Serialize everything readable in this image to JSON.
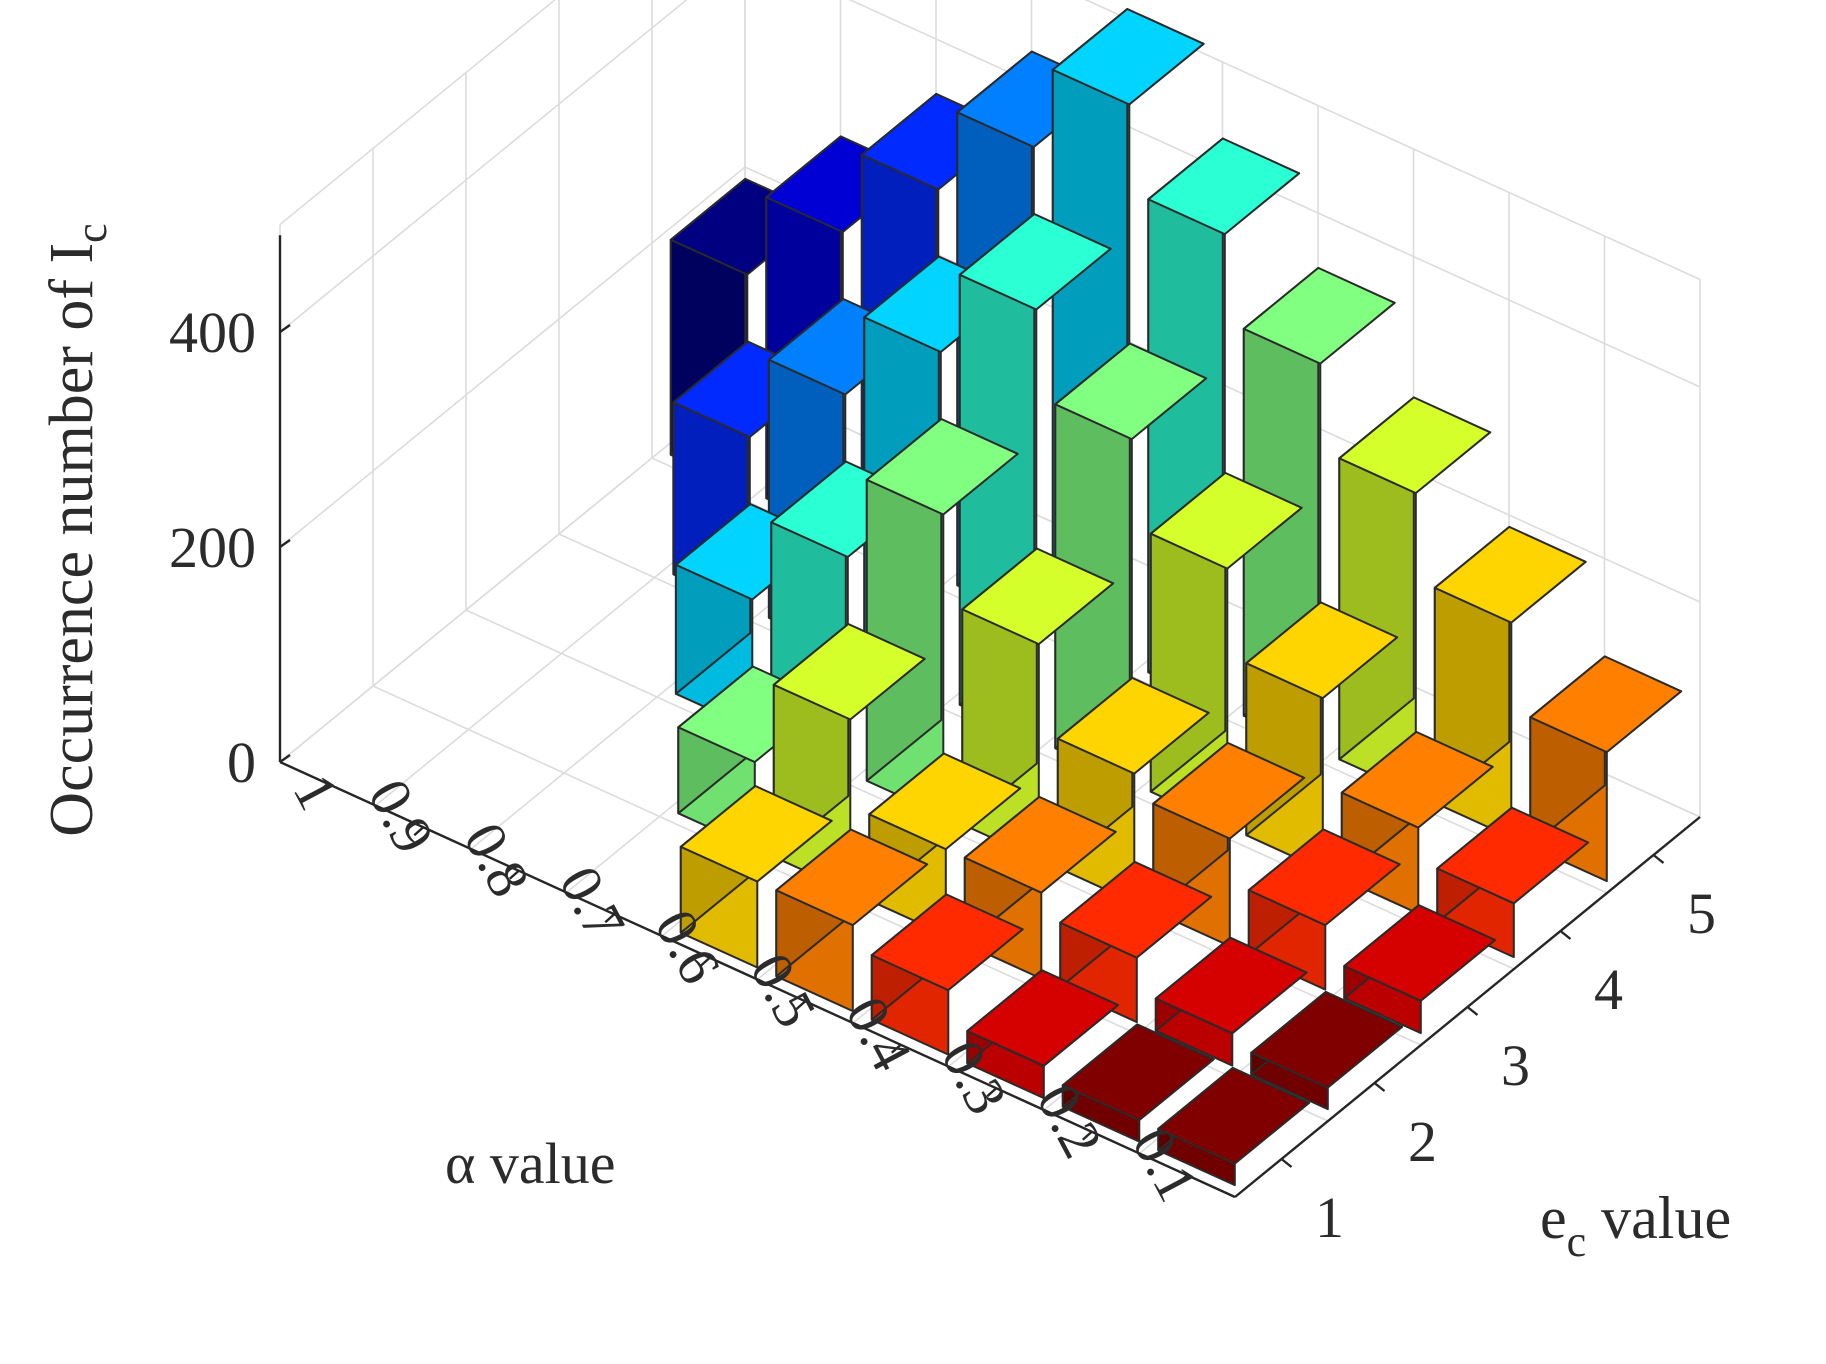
{
  "chart_data": {
    "type": "bar3d",
    "zlabel": {
      "main": "Occurrence number of I",
      "sub": "c"
    },
    "alpha_axis": {
      "label": "α value",
      "ticks": [
        "1",
        "0.9",
        "0.8",
        "0.7",
        "0.6",
        "0.5",
        "0.4",
        "0.3",
        "0.2",
        "0.1"
      ]
    },
    "ec_axis": {
      "label_main": "e",
      "label_sub": "c",
      "label_rest": " value",
      "ticks": [
        "1",
        "2",
        "3",
        "4",
        "5"
      ]
    },
    "z_ticks": [
      "0",
      "200",
      "400"
    ],
    "zlim": [
      0,
      500
    ],
    "grid": true,
    "colormap": "jet",
    "bars": [
      {
        "alpha": "1",
        "ec": 5,
        "value": 200
      },
      {
        "alpha": "0.9",
        "ec": 5,
        "value": 280
      },
      {
        "alpha": "0.8",
        "ec": 5,
        "value": 360
      },
      {
        "alpha": "0.7",
        "ec": 5,
        "value": 440
      },
      {
        "alpha": "0.6",
        "ec": 5,
        "value": 520
      },
      {
        "alpha": "0.5",
        "ec": 5,
        "value": 440
      },
      {
        "alpha": "0.4",
        "ec": 5,
        "value": 360
      },
      {
        "alpha": "0.3",
        "ec": 5,
        "value": 280
      },
      {
        "alpha": "0.2",
        "ec": 5,
        "value": 200
      },
      {
        "alpha": "0.1",
        "ec": 5,
        "value": 120
      },
      {
        "alpha": "0.9",
        "ec": 4,
        "value": 160
      },
      {
        "alpha": "0.8",
        "ec": 4,
        "value": 240
      },
      {
        "alpha": "0.7",
        "ec": 4,
        "value": 320
      },
      {
        "alpha": "0.6",
        "ec": 4,
        "value": 400
      },
      {
        "alpha": "0.5",
        "ec": 4,
        "value": 320
      },
      {
        "alpha": "0.4",
        "ec": 4,
        "value": 240
      },
      {
        "alpha": "0.3",
        "ec": 4,
        "value": 160
      },
      {
        "alpha": "0.2",
        "ec": 4,
        "value": 80
      },
      {
        "alpha": "0.1",
        "ec": 4,
        "value": 50
      },
      {
        "alpha": "0.8",
        "ec": 3,
        "value": 120
      },
      {
        "alpha": "0.7",
        "ec": 3,
        "value": 200
      },
      {
        "alpha": "0.6",
        "ec": 3,
        "value": 280
      },
      {
        "alpha": "0.5",
        "ec": 3,
        "value": 200
      },
      {
        "alpha": "0.4",
        "ec": 3,
        "value": 120
      },
      {
        "alpha": "0.3",
        "ec": 3,
        "value": 100
      },
      {
        "alpha": "0.2",
        "ec": 3,
        "value": 60
      },
      {
        "alpha": "0.1",
        "ec": 3,
        "value": 30
      },
      {
        "alpha": "0.7",
        "ec": 2,
        "value": 80
      },
      {
        "alpha": "0.6",
        "ec": 2,
        "value": 160
      },
      {
        "alpha": "0.5",
        "ec": 2,
        "value": 80
      },
      {
        "alpha": "0.4",
        "ec": 2,
        "value": 80
      },
      {
        "alpha": "0.3",
        "ec": 2,
        "value": 60
      },
      {
        "alpha": "0.2",
        "ec": 2,
        "value": 30
      },
      {
        "alpha": "0.1",
        "ec": 2,
        "value": 20
      },
      {
        "alpha": "0.6",
        "ec": 1,
        "value": 80
      },
      {
        "alpha": "0.5",
        "ec": 1,
        "value": 80
      },
      {
        "alpha": "0.4",
        "ec": 1,
        "value": 60
      },
      {
        "alpha": "0.3",
        "ec": 1,
        "value": 30
      },
      {
        "alpha": "0.2",
        "ec": 1,
        "value": 20
      },
      {
        "alpha": "0.1",
        "ec": 1,
        "value": 20
      }
    ]
  }
}
